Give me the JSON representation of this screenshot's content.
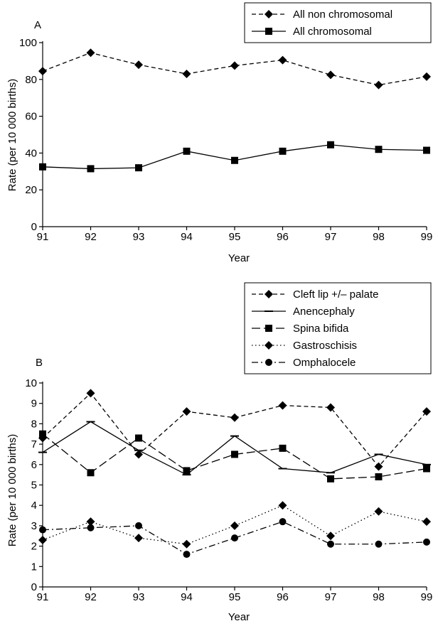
{
  "chart_data": [
    {
      "panel": "A",
      "type": "line",
      "xlabel": "Year",
      "ylabel": "Rate (per 10 000 births)",
      "x": [
        "91",
        "92",
        "93",
        "94",
        "95",
        "96",
        "97",
        "98",
        "99"
      ],
      "yticks": [
        "0",
        "20",
        "40",
        "60",
        "80",
        "100"
      ],
      "ylim": [
        0,
        100
      ],
      "legend_position": "top-right",
      "series": [
        {
          "name": "All non chromosomal",
          "dash": "dashed",
          "marker": "diamond",
          "values": [
            84.5,
            94.5,
            88,
            83,
            87.5,
            90.5,
            82.5,
            77,
            81.5
          ]
        },
        {
          "name": "All chromosomal",
          "dash": "solid",
          "marker": "square",
          "values": [
            32.5,
            31.5,
            32,
            41,
            36,
            41,
            44.5,
            42,
            41.5
          ]
        }
      ]
    },
    {
      "panel": "B",
      "type": "line",
      "xlabel": "Year",
      "ylabel": "Rate (per 10 000 births)",
      "x": [
        "91",
        "92",
        "93",
        "94",
        "95",
        "96",
        "97",
        "98",
        "99"
      ],
      "yticks": [
        "0",
        "1",
        "2",
        "3",
        "4",
        "5",
        "6",
        "7",
        "8",
        "9",
        "10"
      ],
      "ylim": [
        0,
        10
      ],
      "legend_position": "top-right",
      "series": [
        {
          "name": "Cleft lip +/– palate",
          "dash": "dashed",
          "marker": "diamond",
          "values": [
            7.3,
            9.5,
            6.5,
            8.6,
            8.3,
            8.9,
            8.8,
            5.9,
            8.6
          ]
        },
        {
          "name": "Anencephaly",
          "dash": "solid",
          "marker": "tick",
          "values": [
            6.6,
            8.1,
            6.7,
            5.5,
            7.4,
            5.8,
            5.6,
            6.5,
            6.0
          ]
        },
        {
          "name": "Spina bifida",
          "dash": "longdash",
          "marker": "square",
          "values": [
            7.5,
            5.6,
            7.3,
            5.7,
            6.5,
            6.8,
            5.3,
            5.4,
            5.8
          ]
        },
        {
          "name": "Gastroschisis",
          "dash": "dotted",
          "marker": "diamond",
          "values": [
            2.3,
            3.2,
            2.4,
            2.1,
            3.0,
            4.0,
            2.5,
            3.7,
            3.2
          ]
        },
        {
          "name": "Omphalocele",
          "dash": "dashdot",
          "marker": "circle",
          "values": [
            2.8,
            2.9,
            3.0,
            1.6,
            2.4,
            3.2,
            2.1,
            2.1,
            2.2
          ]
        }
      ]
    }
  ]
}
